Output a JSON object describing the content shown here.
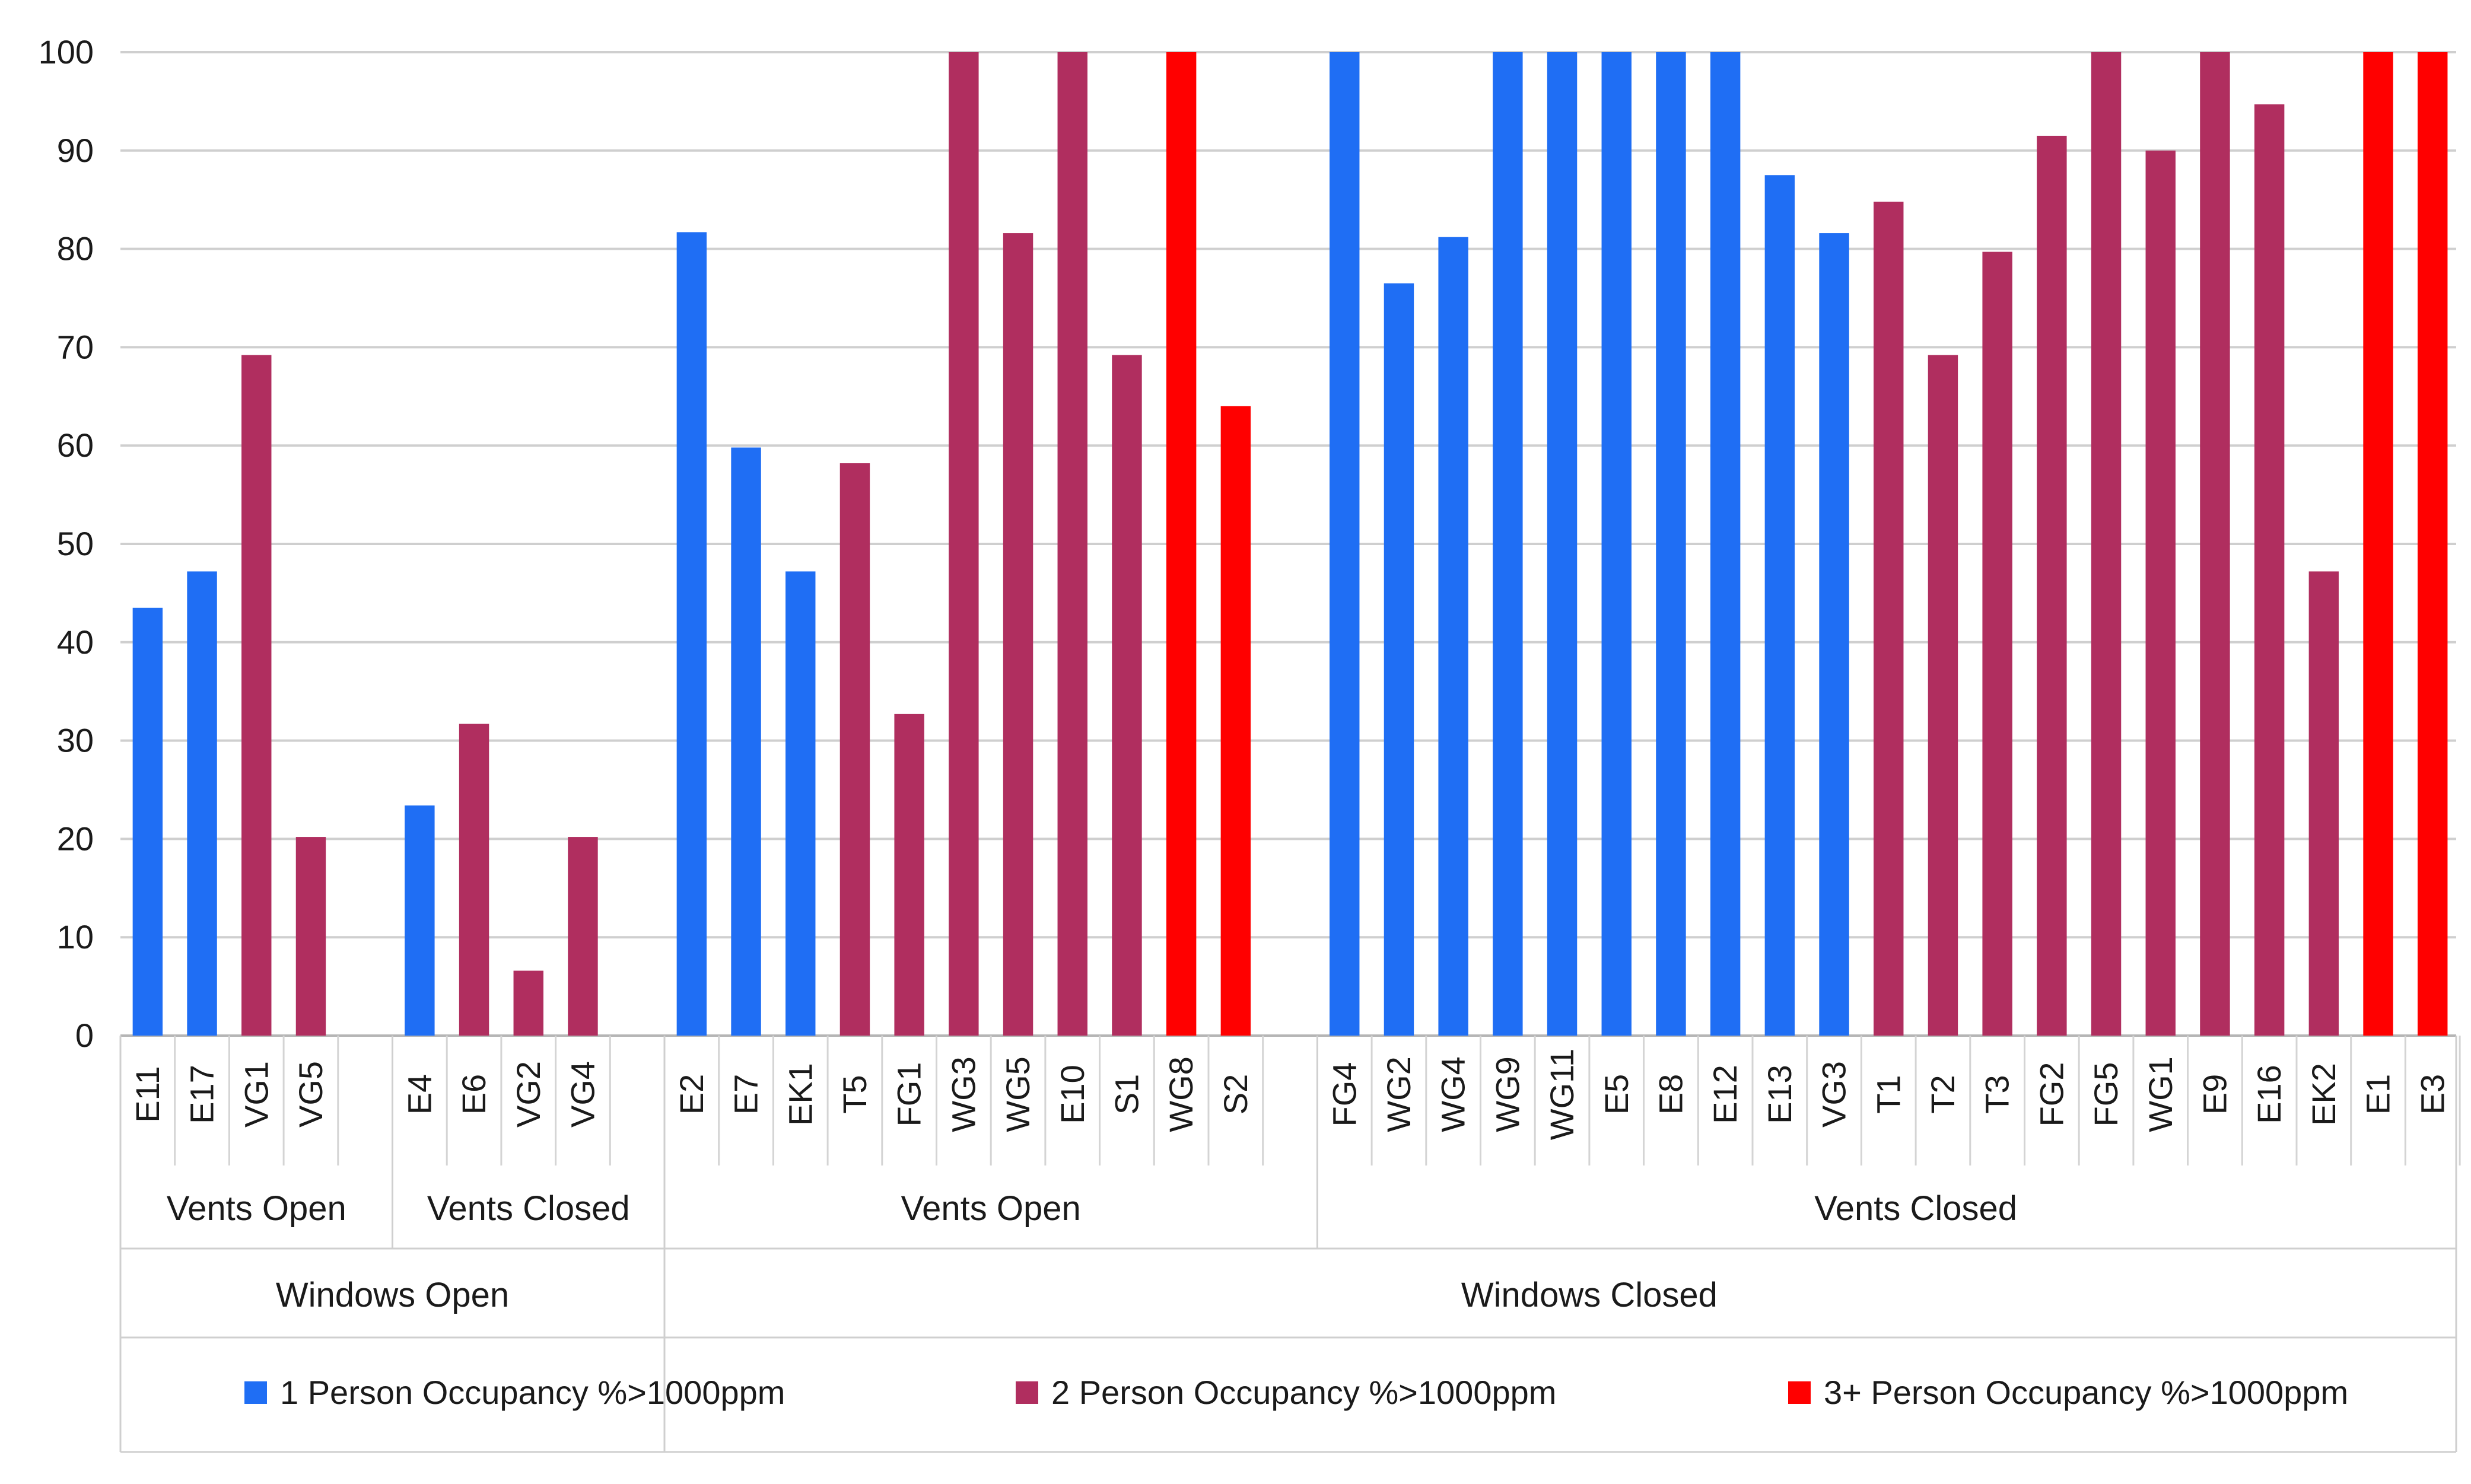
{
  "chart_data": {
    "type": "bar",
    "title": "",
    "xlabel": "",
    "ylabel": "",
    "ylim": [
      0,
      100
    ],
    "yticks": [
      0,
      10,
      20,
      30,
      40,
      50,
      60,
      70,
      80,
      90,
      100
    ],
    "grid": true,
    "legend_position": "bottom",
    "series": [
      {
        "name": "1 Person Occupancy %>1000ppm",
        "color": "#1f6ef4"
      },
      {
        "name": "2 Person Occupancy %>1000ppm",
        "color": "#b02e5f"
      },
      {
        "name": "3+ Person Occupancy %>1000ppm",
        "color": "#ff0000"
      }
    ],
    "groups": [
      {
        "label": "Windows Open",
        "subgroups": [
          {
            "label": "Vents Open",
            "bars": [
              {
                "category": "E11",
                "value": 43.5,
                "series": 0
              },
              {
                "category": "E17",
                "value": 47.2,
                "series": 0
              },
              {
                "category": "VG1",
                "value": 69.2,
                "series": 1
              },
              {
                "category": "VG5",
                "value": 20.2,
                "series": 1
              }
            ]
          },
          {
            "label": "Vents Closed",
            "bars": [
              {
                "category": "E4",
                "value": 23.4,
                "series": 0
              },
              {
                "category": "E6",
                "value": 31.7,
                "series": 1
              },
              {
                "category": "VG2",
                "value": 6.6,
                "series": 1
              },
              {
                "category": "VG4",
                "value": 20.2,
                "series": 1
              }
            ]
          }
        ]
      },
      {
        "label": "Windows Closed",
        "subgroups": [
          {
            "label": "Vents Open",
            "bars": [
              {
                "category": "E2",
                "value": 81.7,
                "series": 0
              },
              {
                "category": "E7",
                "value": 59.8,
                "series": 0
              },
              {
                "category": "EK1",
                "value": 47.2,
                "series": 0
              },
              {
                "category": "T5",
                "value": 58.2,
                "series": 1
              },
              {
                "category": "FG1",
                "value": 32.7,
                "series": 1
              },
              {
                "category": "WG3",
                "value": 100,
                "series": 1
              },
              {
                "category": "WG5",
                "value": 81.6,
                "series": 1
              },
              {
                "category": "E10",
                "value": 100,
                "series": 1
              },
              {
                "category": "S1",
                "value": 69.2,
                "series": 1
              },
              {
                "category": "WG8",
                "value": 100,
                "series": 2
              },
              {
                "category": "S2",
                "value": 64.0,
                "series": 2
              }
            ]
          },
          {
            "label": "Vents Closed",
            "bars": [
              {
                "category": "FG4",
                "value": 100,
                "series": 0
              },
              {
                "category": "WG2",
                "value": 76.5,
                "series": 0
              },
              {
                "category": "WG4",
                "value": 81.2,
                "series": 0
              },
              {
                "category": "WG9",
                "value": 100,
                "series": 0
              },
              {
                "category": "WG11",
                "value": 100,
                "series": 0
              },
              {
                "category": "E5",
                "value": 100,
                "series": 0
              },
              {
                "category": "E8",
                "value": 100,
                "series": 0
              },
              {
                "category": "E12",
                "value": 100,
                "series": 0
              },
              {
                "category": "E13",
                "value": 87.5,
                "series": 0
              },
              {
                "category": "VG3",
                "value": 81.6,
                "series": 0
              },
              {
                "category": "T1",
                "value": 84.8,
                "series": 1
              },
              {
                "category": "T2",
                "value": 69.2,
                "series": 1
              },
              {
                "category": "T3",
                "value": 79.7,
                "series": 1
              },
              {
                "category": "FG2",
                "value": 91.5,
                "series": 1
              },
              {
                "category": "FG5",
                "value": 100,
                "series": 1
              },
              {
                "category": "WG1",
                "value": 90.0,
                "series": 1
              },
              {
                "category": "E9",
                "value": 100,
                "series": 1
              },
              {
                "category": "E16",
                "value": 94.7,
                "series": 1
              },
              {
                "category": "EK2",
                "value": 47.2,
                "series": 1
              },
              {
                "category": "E1",
                "value": 100,
                "series": 2
              },
              {
                "category": "E3",
                "value": 100,
                "series": 2
              }
            ]
          }
        ]
      }
    ]
  }
}
